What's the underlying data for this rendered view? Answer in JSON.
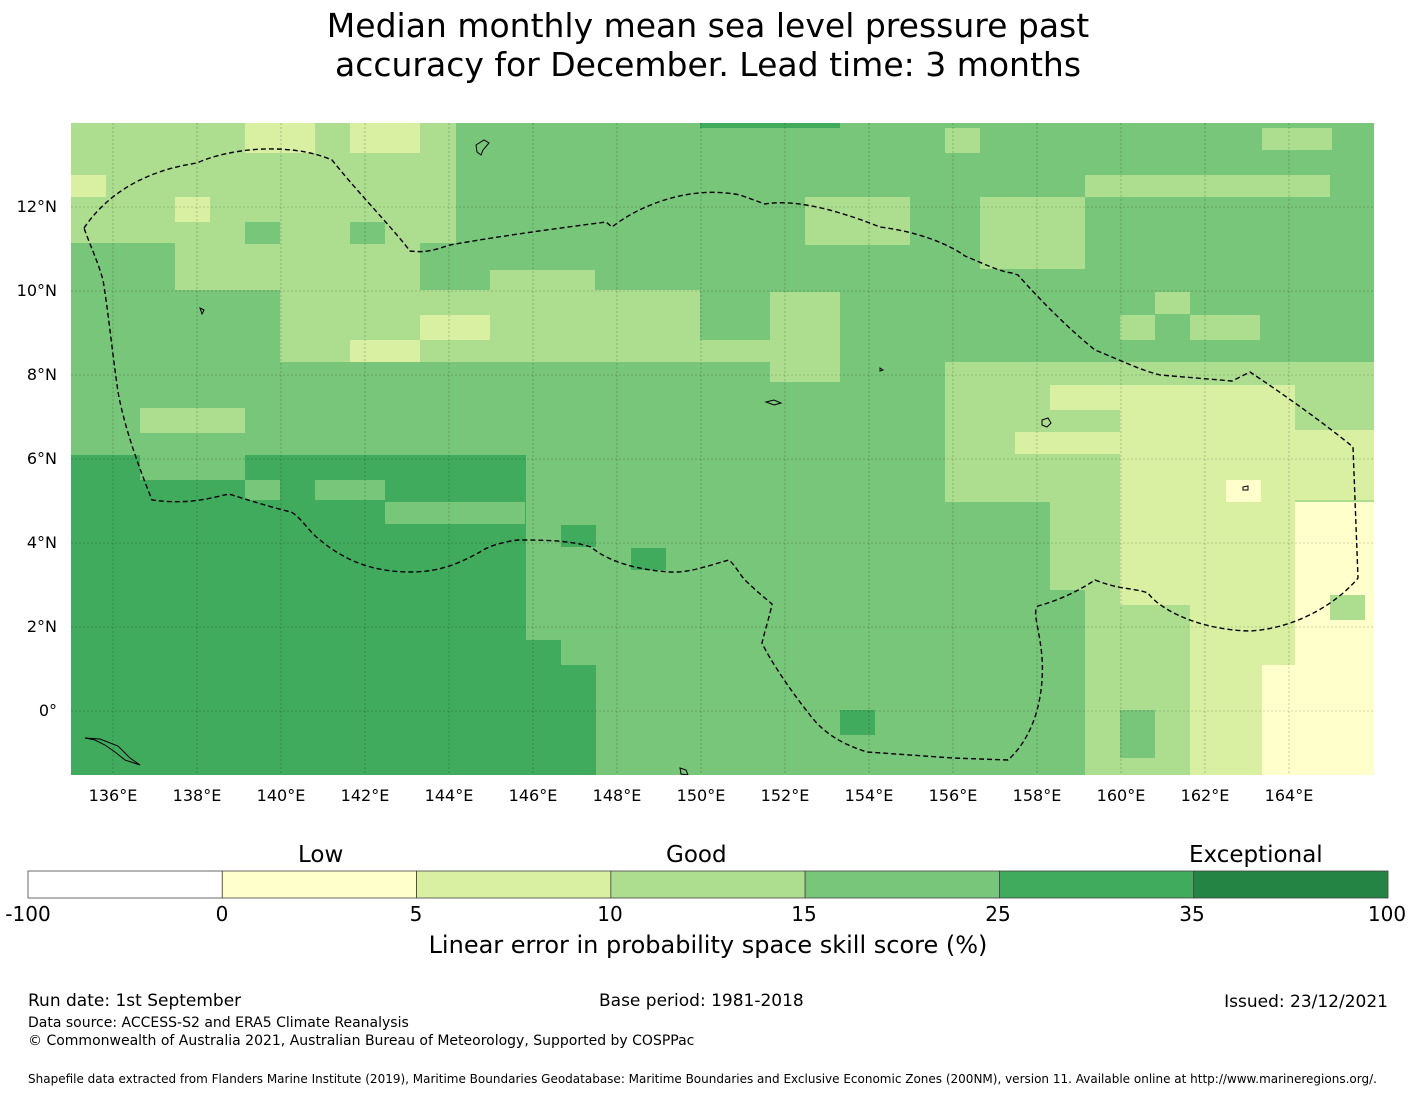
{
  "title": {
    "line1": "Median monthly mean sea level pressure past",
    "line2": "accuracy for December. Lead time: 3 months"
  },
  "map": {
    "lon_range": [
      135,
      166
    ],
    "lat_range": [
      -1.5,
      14
    ],
    "lon_ticks": [
      "136°E",
      "138°E",
      "140°E",
      "142°E",
      "144°E",
      "146°E",
      "148°E",
      "150°E",
      "152°E",
      "154°E",
      "156°E",
      "158°E",
      "160°E",
      "162°E",
      "164°E"
    ],
    "lat_ticks": [
      "12°N",
      "10°N",
      "8°N",
      "6°N",
      "4°N",
      "2°N",
      "0°"
    ],
    "grid": true,
    "boundary": "dashed EEZ outline"
  },
  "colorbar": {
    "categories": [
      "Low",
      "Good",
      "Exceptional"
    ],
    "boundaries": [
      "-100",
      "0",
      "5",
      "10",
      "15",
      "25",
      "35",
      "100"
    ],
    "colors": [
      "#ffffff",
      "#ffffcc",
      "#d9f0a3",
      "#addd8e",
      "#78c679",
      "#41ab5d",
      "#238443"
    ],
    "label": "Linear error in probability space skill score (%)"
  },
  "footer": {
    "run_date": "Run date: 1st September",
    "base_period": "Base period: 1981-2018",
    "issued": "Issued: 23/12/2021",
    "data_source": "Data source: ACCESS-S2 and ERA5 Climate Reanalysis",
    "copyright": "© Commonwealth of Australia 2021, Australian Bureau of Meteorology, Supported by COSPPac",
    "shapefile": "Shapefile data extracted from Flanders Marine Institute (2019), Maritime Boundaries Geodatabase: Maritime Boundaries and Exclusive Economic Zones (200NM), version 11. Available online at http://www.marineregions.org/."
  }
}
